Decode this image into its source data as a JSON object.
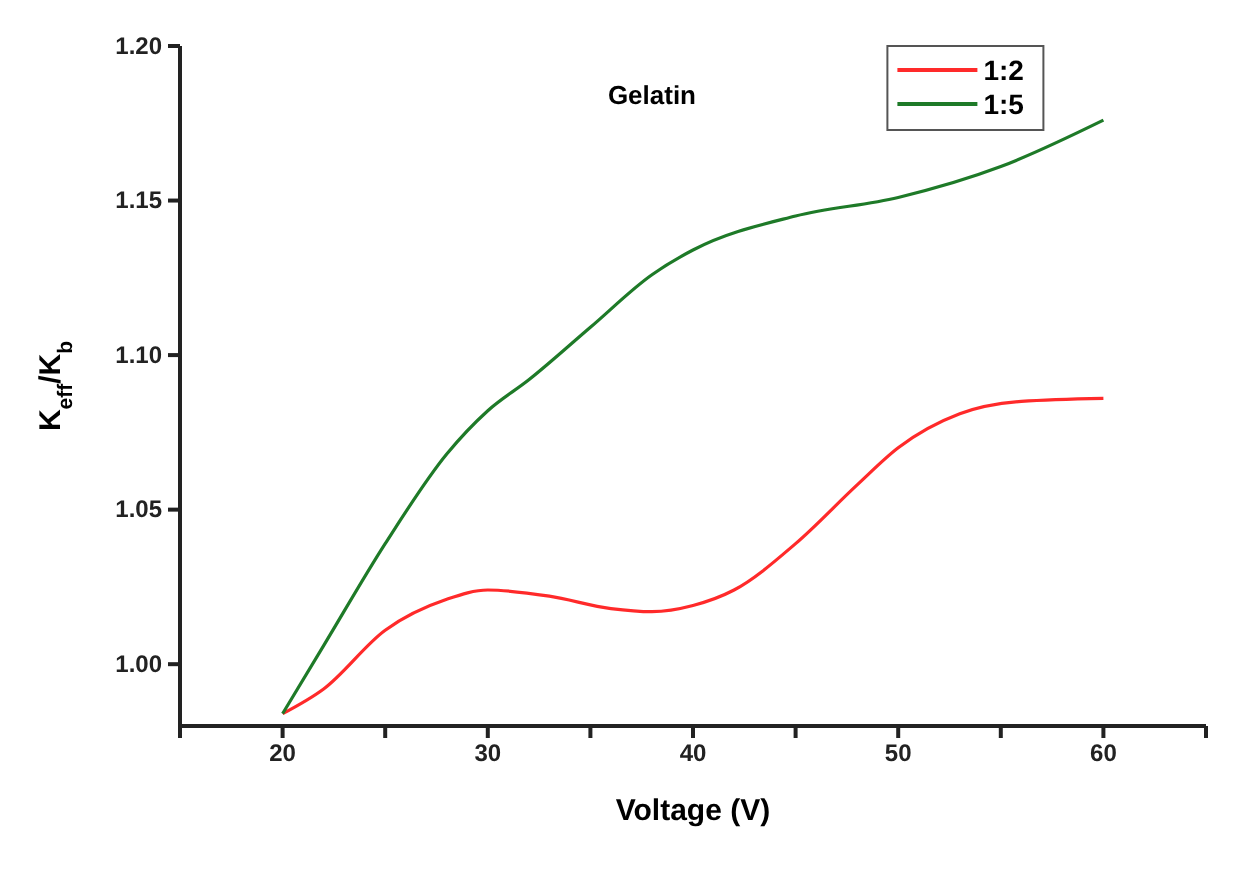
{
  "chart_data": {
    "type": "line",
    "xlabel": "Voltage (V)",
    "ylabel": "K$_{eff}$/K$_{b}$",
    "annotations": [
      "Gelatin"
    ],
    "xlim": [
      15,
      65
    ],
    "ylim": [
      0.98,
      1.2
    ],
    "xticks": [
      {
        "value": 15,
        "label": null
      },
      20,
      {
        "value": 25,
        "label": null
      },
      30,
      {
        "value": 35,
        "label": null
      },
      40,
      {
        "value": 45,
        "label": null
      },
      50,
      {
        "value": 55,
        "label": null
      },
      60,
      {
        "value": 65,
        "label": null
      }
    ],
    "yticks": [
      {
        "value": 1,
        "label": "1.00"
      },
      1.05,
      {
        "value": 1.1,
        "label": "1.10"
      },
      1.15,
      {
        "value": 1.2,
        "label": "1.20"
      }
    ],
    "legend": "top right",
    "grid": false,
    "marker": "none",
    "line_style": "solid",
    "series": [
      {
        "name": "1:2",
        "color": "#ff2a2a",
        "x": [
          20,
          22,
          25,
          28,
          30,
          33,
          36,
          38,
          40,
          42,
          45,
          48,
          50,
          53,
          56,
          60
        ],
        "values": [
          0.984,
          0.992,
          1.011,
          1.021,
          1.024,
          1.022,
          1.018,
          1.017,
          1.019,
          1.024,
          1.039,
          1.058,
          1.07,
          1.081,
          1.085,
          1.086
        ]
      },
      {
        "name": "1:5",
        "color": "#1e7a28",
        "x": [
          20,
          22,
          25,
          28,
          30,
          32,
          35,
          38,
          40,
          45,
          50,
          55,
          60
        ],
        "values": [
          0.984,
          1.006,
          1.039,
          1.068,
          1.082,
          1.092,
          1.109,
          1.126,
          1.134,
          1.145,
          1.151,
          1.161,
          1.176
        ]
      }
    ]
  }
}
